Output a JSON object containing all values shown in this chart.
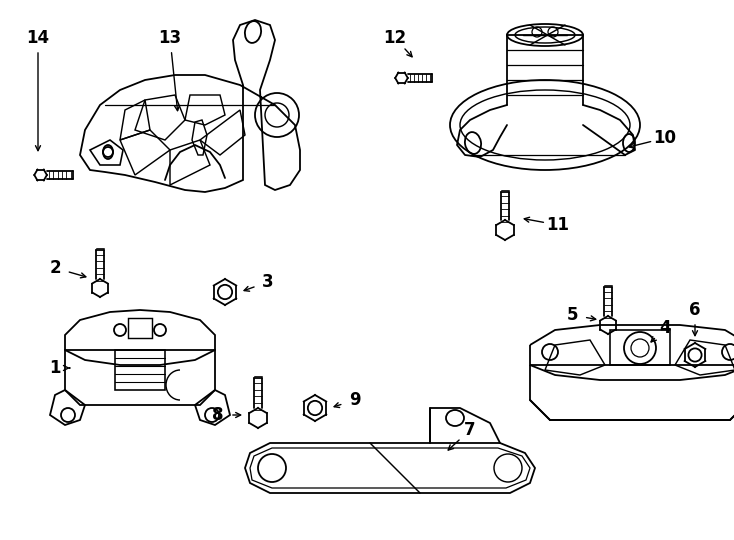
{
  "background_color": "#ffffff",
  "line_color": "#000000",
  "line_width": 1.3,
  "label_fontsize": 12,
  "label_fontweight": "bold",
  "fig_w": 7.34,
  "fig_h": 5.4,
  "dpi": 100
}
